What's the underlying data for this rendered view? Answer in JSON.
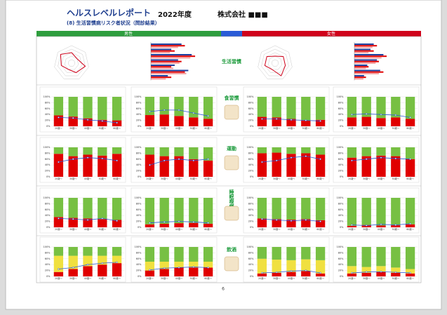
{
  "header": {
    "title": "ヘルスレベルレポート",
    "year": "2022年度",
    "company": "株式会社 ■■■",
    "subtitle": "(8) 生活習慣病リスク者状況（問診結果）"
  },
  "sections": {
    "male": "男性",
    "female": "女性"
  },
  "row_labels": [
    "生活習慣",
    "食習慣",
    "運動",
    "睡眠喫煙",
    "飲酒"
  ],
  "categories": [
    "20歳〜",
    "30歳〜",
    "40歳〜",
    "50歳〜",
    "60歳〜"
  ],
  "yticks": [
    {
      "value": 0,
      "label": "0%"
    },
    {
      "value": 20,
      "label": "20%"
    },
    {
      "value": 40,
      "label": "40%"
    },
    {
      "value": 60,
      "label": "60%"
    },
    {
      "value": 80,
      "label": "80%"
    },
    {
      "value": 100,
      "label": "100%"
    }
  ],
  "ylim": [
    0,
    100
  ],
  "top": [
    {
      "radar": {
        "color": "#d0021b",
        "values": [
          3,
          2,
          4,
          3,
          2,
          3,
          4
        ],
        "rlim": [
          0,
          5
        ]
      },
      "hbar": {
        "xlim": [
          0,
          100
        ],
        "series": [
          {
            "color": "#1f3f9f",
            "values": [
              45,
              30,
              60,
              40,
              35,
              55,
              25
            ]
          },
          {
            "color": "#e00000",
            "values": [
              50,
              35,
              65,
              45,
              30,
              50,
              30
            ]
          },
          {
            "color": "#f4a0a0",
            "values": [
              40,
              28,
              58,
              42,
              33,
              52,
              22
            ]
          }
        ]
      }
    },
    {
      "radar": {
        "color": "#d0021b",
        "values": [
          2,
          3,
          3,
          4,
          2,
          3,
          3
        ],
        "rlim": [
          0,
          5
        ]
      },
      "hbar": {
        "xlim": [
          0,
          100
        ],
        "series": [
          {
            "color": "#1f3f9f",
            "values": [
              30,
              25,
              45,
              35,
              20,
              40,
              15
            ]
          },
          {
            "color": "#e00000",
            "values": [
              35,
              30,
              50,
              38,
              22,
              45,
              18
            ]
          },
          {
            "color": "#f4a0a0",
            "values": [
              28,
              22,
              42,
              33,
              18,
              38,
              14
            ]
          }
        ]
      }
    }
  ],
  "charts": [
    {
      "series": [
        {
          "color": "#e00000",
          "values": [
            37,
            33,
            27,
            22,
            20
          ]
        },
        {
          "color": "#77c043",
          "values": [
            63,
            67,
            73,
            78,
            80
          ]
        }
      ],
      "line": {
        "color": "#2a5bd7",
        "values": [
          30,
          28,
          22,
          18,
          12
        ]
      }
    },
    {
      "series": [
        {
          "color": "#e00000",
          "values": [
            38,
            40,
            35,
            30,
            25
          ]
        },
        {
          "color": "#77c043",
          "values": [
            62,
            60,
            65,
            70,
            75
          ]
        }
      ],
      "line": {
        "color": "#2a5bd7",
        "values": [
          50,
          55,
          55,
          45,
          35
        ]
      }
    },
    {
      "series": [
        {
          "color": "#e00000",
          "values": [
            32,
            30,
            25,
            20,
            22
          ]
        },
        {
          "color": "#77c043",
          "values": [
            68,
            70,
            75,
            80,
            78
          ]
        }
      ],
      "line": {
        "color": "#2a5bd7",
        "values": [
          25,
          25,
          22,
          20,
          18
        ]
      }
    },
    {
      "series": [
        {
          "color": "#e00000",
          "values": [
            30,
            32,
            28,
            30,
            25
          ]
        },
        {
          "color": "#77c043",
          "values": [
            70,
            68,
            72,
            70,
            75
          ]
        }
      ],
      "line": {
        "color": "#2a5bd7",
        "values": [
          40,
          42,
          40,
          38,
          30
        ]
      }
    },
    {
      "series": [
        {
          "color": "#e00000",
          "values": [
            78,
            70,
            75,
            72,
            78
          ]
        },
        {
          "color": "#77c043",
          "values": [
            22,
            30,
            25,
            28,
            22
          ]
        }
      ],
      "line": {
        "color": "#2a5bd7",
        "values": [
          50,
          60,
          65,
          62,
          55
        ]
      }
    },
    {
      "series": [
        {
          "color": "#e00000",
          "values": [
            75,
            70,
            70,
            60,
            55
          ]
        },
        {
          "color": "#77c043",
          "values": [
            25,
            30,
            30,
            40,
            45
          ]
        }
      ],
      "line": {
        "color": "#2a5bd7",
        "values": [
          40,
          55,
          60,
          55,
          60
        ]
      }
    },
    {
      "series": [
        {
          "color": "#e00000",
          "values": [
            80,
            82,
            78,
            80,
            75
          ]
        },
        {
          "color": "#77c043",
          "values": [
            20,
            18,
            22,
            20,
            25
          ]
        }
      ],
      "line": {
        "color": "#2a5bd7",
        "values": [
          50,
          55,
          65,
          70,
          60
        ]
      }
    },
    {
      "series": [
        {
          "color": "#e00000",
          "values": [
            65,
            70,
            72,
            70,
            60
          ]
        },
        {
          "color": "#77c043",
          "values": [
            35,
            30,
            28,
            30,
            40
          ]
        }
      ],
      "line": {
        "color": "#2a5bd7",
        "values": [
          55,
          60,
          65,
          62,
          60
        ]
      }
    },
    {
      "series": [
        {
          "color": "#e00000",
          "values": [
            35,
            32,
            30,
            28,
            25
          ]
        },
        {
          "color": "#77c043",
          "values": [
            65,
            68,
            70,
            72,
            75
          ]
        }
      ],
      "line": {
        "color": "#2a5bd7",
        "values": [
          30,
          28,
          25,
          30,
          22
        ]
      }
    },
    {
      "series": [
        {
          "color": "#e00000",
          "values": [
            10,
            12,
            14,
            15,
            12
          ]
        },
        {
          "color": "#77c043",
          "values": [
            90,
            88,
            86,
            85,
            88
          ]
        }
      ],
      "line": {
        "color": "#2a5bd7",
        "values": [
          15,
          18,
          20,
          18,
          15
        ]
      }
    },
    {
      "series": [
        {
          "color": "#e00000",
          "values": [
            30,
            28,
            26,
            28,
            24
          ]
        },
        {
          "color": "#77c043",
          "values": [
            70,
            72,
            74,
            72,
            76
          ]
        }
      ],
      "line": {
        "color": "#2a5bd7",
        "values": [
          28,
          25,
          22,
          25,
          20
        ]
      }
    },
    {
      "series": [
        {
          "color": "#e00000",
          "values": [
            5,
            8,
            6,
            7,
            10
          ]
        },
        {
          "color": "#77c043",
          "values": [
            95,
            92,
            94,
            93,
            90
          ]
        }
      ],
      "line": {
        "color": "#2a5bd7",
        "values": [
          8,
          6,
          10,
          8,
          12
        ]
      }
    },
    {
      "series": [
        {
          "color": "#e00000",
          "values": [
            15,
            25,
            35,
            40,
            45
          ]
        },
        {
          "color": "#f0e040",
          "values": [
            55,
            45,
            35,
            30,
            25
          ]
        },
        {
          "color": "#77c043",
          "values": [
            30,
            30,
            30,
            30,
            30
          ]
        }
      ],
      "line": {
        "color": "#2a5bd7",
        "values": [
          25,
          30,
          40,
          45,
          48
        ]
      }
    },
    {
      "series": [
        {
          "color": "#e00000",
          "values": [
            20,
            25,
            30,
            30,
            30
          ]
        },
        {
          "color": "#f0e040",
          "values": [
            30,
            25,
            20,
            20,
            20
          ]
        },
        {
          "color": "#77c043",
          "values": [
            50,
            50,
            50,
            50,
            50
          ]
        }
      ],
      "line": {
        "color": "#2a5bd7",
        "values": [
          22,
          28,
          30,
          32,
          30
        ]
      }
    },
    {
      "series": [
        {
          "color": "#e00000",
          "values": [
            10,
            12,
            15,
            18,
            10
          ]
        },
        {
          "color": "#f0e040",
          "values": [
            50,
            45,
            40,
            40,
            45
          ]
        },
        {
          "color": "#77c043",
          "values": [
            40,
            43,
            45,
            42,
            45
          ]
        }
      ],
      "line": {
        "color": "#2a5bd7",
        "values": [
          12,
          14,
          18,
          20,
          12
        ]
      }
    },
    {
      "series": [
        {
          "color": "#e00000",
          "values": [
            10,
            12,
            15,
            12,
            10
          ]
        },
        {
          "color": "#f0e040",
          "values": [
            25,
            20,
            20,
            18,
            15
          ]
        },
        {
          "color": "#77c043",
          "values": [
            65,
            68,
            65,
            70,
            75
          ]
        }
      ],
      "line": {
        "color": "#2a5bd7",
        "values": [
          12,
          15,
          16,
          14,
          12
        ]
      }
    }
  ],
  "page_number": "6"
}
